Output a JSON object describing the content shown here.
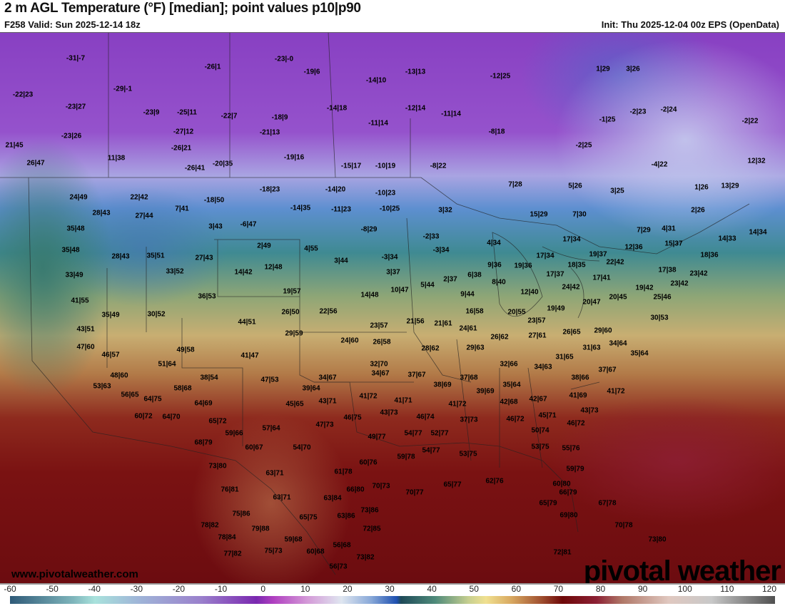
{
  "header": {
    "title": "2 m AGL Temperature (°F) [median]; point values p10|p90",
    "valid": "F258 Valid: Sun 2025-12-14 18z",
    "init": "Init: Thu 2025-12-04 00z EPS (OpenData)"
  },
  "watermark": {
    "url": "www.pivotalweather.com",
    "logo": "pivotal weather"
  },
  "colorbar": {
    "ticks": [
      "-60",
      "-50",
      "-40",
      "-30",
      "-20",
      "-10",
      "0",
      "10",
      "20",
      "30",
      "40",
      "50",
      "60",
      "70",
      "80",
      "90",
      "100",
      "110",
      "120"
    ],
    "range": [
      -60,
      120
    ],
    "stops": [
      {
        "v": -60,
        "c": "#2f5a78"
      },
      {
        "v": -45,
        "c": "#7fb6bc"
      },
      {
        "v": -40,
        "c": "#a9e2dc"
      },
      {
        "v": -30,
        "c": "#9fb6d8"
      },
      {
        "v": -15,
        "c": "#9a80cc"
      },
      {
        "v": -2,
        "c": "#7a28b0"
      },
      {
        "v": 2,
        "c": "#b040c0"
      },
      {
        "v": 10,
        "c": "#d49ad8"
      },
      {
        "v": 18,
        "c": "#dfe6f0"
      },
      {
        "v": 25,
        "c": "#88a8d8"
      },
      {
        "v": 31,
        "c": "#1e50b0"
      },
      {
        "v": 32,
        "c": "#1e4a58"
      },
      {
        "v": 40,
        "c": "#4e8a7a"
      },
      {
        "v": 48,
        "c": "#c8d090"
      },
      {
        "v": 52,
        "c": "#f0e090"
      },
      {
        "v": 58,
        "c": "#d8a860"
      },
      {
        "v": 65,
        "c": "#a05030"
      },
      {
        "v": 70,
        "c": "#6e0808"
      },
      {
        "v": 78,
        "c": "#8c2034"
      },
      {
        "v": 84,
        "c": "#b07868"
      },
      {
        "v": 95,
        "c": "#e0c8c0"
      },
      {
        "v": 105,
        "c": "#c8c8c8"
      },
      {
        "v": 120,
        "c": "#505050"
      }
    ]
  },
  "point_values": [
    "-31|-7",
    "-26|1",
    "-23|-0",
    "-19|6",
    "-13|13",
    "-12|25",
    "1|29",
    "3|26",
    "-22|23",
    "-29|-1",
    "-14|10",
    "-23|27",
    "-14|18",
    "-12|14",
    "-11|14",
    "-2|23",
    "-2|24",
    "-23|9",
    "-25|11",
    "-22|7",
    "-18|9",
    "-11|14",
    "-1|25",
    "-2|22",
    "-23|26",
    "-27|12",
    "-21|13",
    "-8|18",
    "21|45",
    "-26|21",
    "-2|25",
    "11|38",
    "-19|16",
    "26|47",
    "-20|35",
    "-26|41",
    "-15|17",
    "-10|19",
    "-8|22",
    "-4|22",
    "12|32",
    "-18|23",
    "-14|20",
    "-10|23",
    "7|28",
    "5|26",
    "3|25",
    "1|26",
    "13|29",
    "24|49",
    "22|42",
    "-18|50",
    "7|41",
    "-14|35",
    "-11|23",
    "-10|25",
    "3|32",
    "2|26",
    "28|43",
    "27|44",
    "3|43",
    "-6|47",
    "-8|29",
    "15|29",
    "7|30",
    "7|29",
    "4|31",
    "35|48",
    "-2|33",
    "4|34",
    "17|34",
    "14|34",
    "14|33",
    "15|37",
    "35|48",
    "2|49",
    "4|55",
    "-3|34",
    "12|36",
    "28|43",
    "35|51",
    "27|43",
    "3|44",
    "-3|34",
    "19|36",
    "17|34",
    "19|37",
    "22|42",
    "18|36",
    "9|36",
    "33|52",
    "14|42",
    "12|48",
    "3|37",
    "18|35",
    "17|38",
    "23|42",
    "33|49",
    "2|37",
    "6|38",
    "17|37",
    "17|41",
    "8|40",
    "24|42",
    "23|42",
    "36|53",
    "19|57",
    "5|44",
    "10|47",
    "14|48",
    "9|44",
    "12|40",
    "20|45",
    "19|42",
    "25|46",
    "41|55",
    "20|47",
    "35|49",
    "30|52",
    "26|50",
    "22|56",
    "16|58",
    "20|55",
    "19|49",
    "30|53",
    "44|51",
    "23|57",
    "21|56",
    "21|61",
    "24|61",
    "23|57",
    "43|51",
    "29|59",
    "26|62",
    "27|61",
    "26|65",
    "29|60",
    "24|60",
    "26|58",
    "47|60",
    "28|62",
    "29|63",
    "31|63",
    "34|64",
    "46|57",
    "49|58",
    "41|47",
    "35|64",
    "31|65",
    "51|64",
    "32|70",
    "32|66",
    "34|63",
    "48|60",
    "38|54",
    "47|53",
    "34|67",
    "34|67",
    "37|67",
    "37|68",
    "37|67",
    "38|66",
    "53|63",
    "58|68",
    "39|64",
    "38|69",
    "39|69",
    "35|64",
    "41|72",
    "56|65",
    "64|75",
    "41|69",
    "64|69",
    "45|65",
    "43|71",
    "41|72",
    "41|71",
    "42|68",
    "42|67",
    "41|72",
    "60|72",
    "64|70",
    "65|72",
    "46|75",
    "43|73",
    "46|74",
    "47|73",
    "37|73",
    "46|72",
    "45|71",
    "43|73",
    "46|72",
    "57|64",
    "59|66",
    "49|77",
    "54|77",
    "52|77",
    "50|74",
    "68|79",
    "60|67",
    "54|70",
    "53|75",
    "55|76",
    "54|77",
    "53|75",
    "59|78",
    "73|80",
    "60|76",
    "59|79",
    "63|71",
    "61|78",
    "65|77",
    "62|76",
    "70|77",
    "70|73",
    "66|80",
    "60|80",
    "76|81",
    "66|79",
    "63|71",
    "63|84",
    "65|79",
    "67|78",
    "73|86",
    "75|86",
    "65|75",
    "63|86",
    "69|80",
    "78|82",
    "79|88",
    "72|85",
    "70|78",
    "78|84",
    "59|68",
    "56|68",
    "73|80",
    "75|73",
    "60|68",
    "77|82",
    "73|82",
    "72|81",
    "56|73"
  ]
}
